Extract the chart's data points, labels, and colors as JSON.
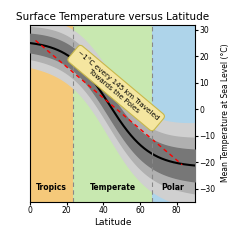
{
  "title": "Surface Temperature versus Latitude",
  "xlabel": "Latitude",
  "ylabel": "Mean Temperature at Sea Level (°C)",
  "xlim": [
    0,
    90
  ],
  "ylim": [
    -35,
    32
  ],
  "yticks": [
    -30,
    -20,
    -10,
    0,
    10,
    20,
    30
  ],
  "xticks": [
    0,
    20,
    40,
    60,
    80
  ],
  "tropics_color": "#f5c97a",
  "temperate_color": "#c8e8b0",
  "polar_color": "#aed4ea",
  "tropics_end": 23.5,
  "temperate_end": 66.5,
  "annotation_text": "~1°C every 145 km Traveled\nTowards the Poles",
  "annotation_color": "#f5e6a0",
  "annotation_edge_color": "#c8b84a",
  "dashed_line_color": "red",
  "curve_color": "black",
  "band1_color": "#777777",
  "band2_color": "#b0b0b0",
  "band3_color": "#d0d0d0",
  "vline_color": "#888888"
}
